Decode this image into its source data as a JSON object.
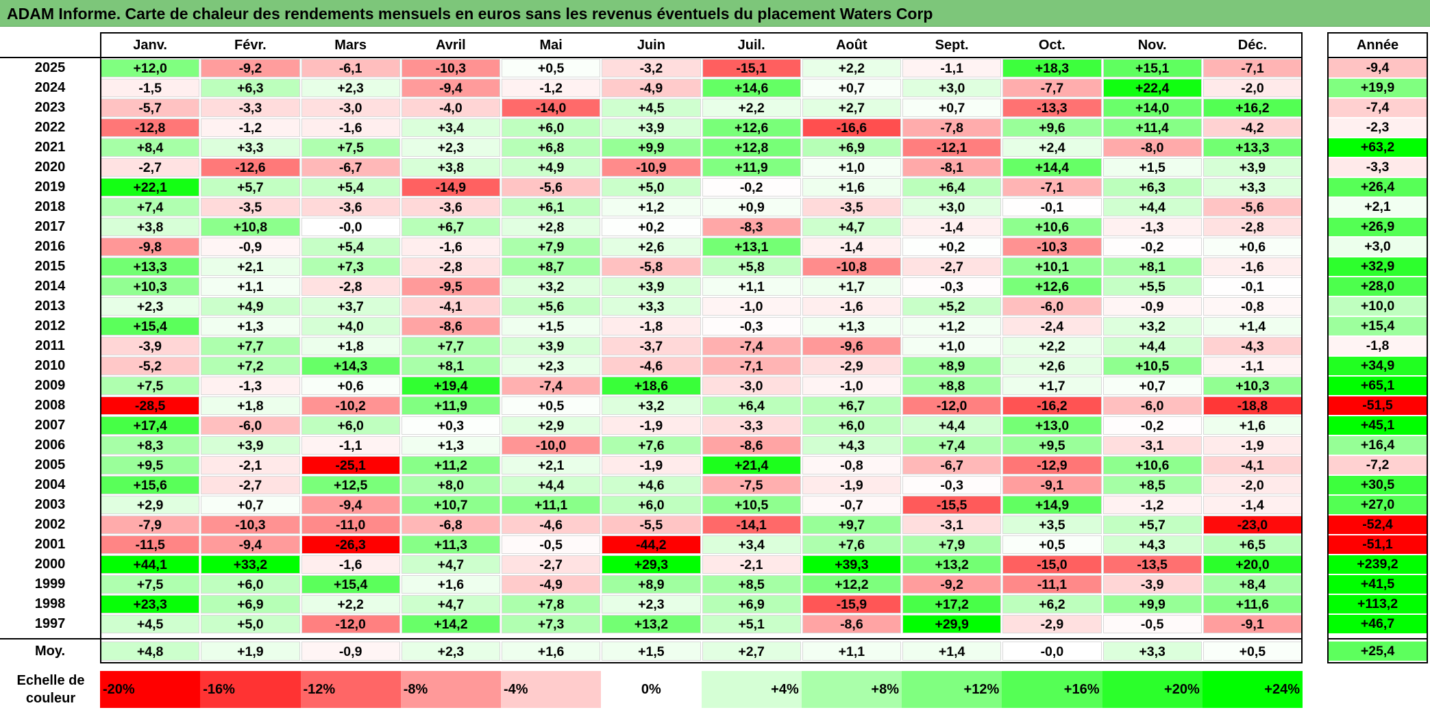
{
  "title": "ADAM Informe. Carte de chaleur des rendements mensuels en euros sans les revenus éventuels du placement Waters Corp",
  "chart_data": {
    "type": "heatmap",
    "months": [
      "Janv.",
      "Févr.",
      "Mars",
      "Avril",
      "Mai",
      "Juin",
      "Juil.",
      "Août",
      "Sept.",
      "Oct.",
      "Nov.",
      "Déc."
    ],
    "annual_header": "Année",
    "rows": [
      {
        "year": "2025",
        "values": [
          "+12,0",
          "-9,2",
          "-6,1",
          "-10,3",
          "+0,5",
          "-3,2",
          "-15,1",
          "+2,2",
          "-1,1",
          "+18,3",
          "+15,1",
          "-7,1"
        ],
        "annual": "-9,4"
      },
      {
        "year": "2024",
        "values": [
          "-1,5",
          "+6,3",
          "+2,3",
          "-9,4",
          "-1,2",
          "-4,9",
          "+14,6",
          "+0,7",
          "+3,0",
          "-7,7",
          "+22,4",
          "-2,0"
        ],
        "annual": "+19,9"
      },
      {
        "year": "2023",
        "values": [
          "-5,7",
          "-3,3",
          "-3,0",
          "-4,0",
          "-14,0",
          "+4,5",
          "+2,2",
          "+2,7",
          "+0,7",
          "-13,3",
          "+14,0",
          "+16,2"
        ],
        "annual": "-7,4"
      },
      {
        "year": "2022",
        "values": [
          "-12,8",
          "-1,2",
          "-1,6",
          "+3,4",
          "+6,0",
          "+3,9",
          "+12,6",
          "-16,6",
          "-7,8",
          "+9,6",
          "+11,4",
          "-4,2"
        ],
        "annual": "-2,3"
      },
      {
        "year": "2021",
        "values": [
          "+8,4",
          "+3,3",
          "+7,5",
          "+2,3",
          "+6,8",
          "+9,9",
          "+12,8",
          "+6,9",
          "-12,1",
          "+2,4",
          "-8,0",
          "+13,3"
        ],
        "annual": "+63,2"
      },
      {
        "year": "2020",
        "values": [
          "-2,7",
          "-12,6",
          "-6,7",
          "+3,8",
          "+4,9",
          "-10,9",
          "+11,9",
          "+1,0",
          "-8,1",
          "+14,4",
          "+1,5",
          "+3,9"
        ],
        "annual": "-3,3"
      },
      {
        "year": "2019",
        "values": [
          "+22,1",
          "+5,7",
          "+5,4",
          "-14,9",
          "-5,6",
          "+5,0",
          "-0,2",
          "+1,6",
          "+6,4",
          "-7,1",
          "+6,3",
          "+3,3"
        ],
        "annual": "+26,4"
      },
      {
        "year": "2018",
        "values": [
          "+7,4",
          "-3,5",
          "-3,6",
          "-3,6",
          "+6,1",
          "+1,2",
          "+0,9",
          "-3,5",
          "+3,0",
          "-0,1",
          "+4,4",
          "-5,6"
        ],
        "annual": "+2,1"
      },
      {
        "year": "2017",
        "values": [
          "+3,8",
          "+10,8",
          "-0,0",
          "+6,7",
          "+2,8",
          "+0,2",
          "-8,3",
          "+4,7",
          "-1,4",
          "+10,6",
          "-1,3",
          "-2,8"
        ],
        "annual": "+26,9"
      },
      {
        "year": "2016",
        "values": [
          "-9,8",
          "-0,9",
          "+5,4",
          "-1,6",
          "+7,9",
          "+2,6",
          "+13,1",
          "-1,4",
          "+0,2",
          "-10,3",
          "-0,2",
          "+0,6"
        ],
        "annual": "+3,0"
      },
      {
        "year": "2015",
        "values": [
          "+13,3",
          "+2,1",
          "+7,3",
          "-2,8",
          "+8,7",
          "-5,8",
          "+5,8",
          "-10,8",
          "-2,7",
          "+10,1",
          "+8,1",
          "-1,6"
        ],
        "annual": "+32,9"
      },
      {
        "year": "2014",
        "values": [
          "+10,3",
          "+1,1",
          "-2,8",
          "-9,5",
          "+3,2",
          "+3,9",
          "+1,1",
          "+1,7",
          "-0,3",
          "+12,6",
          "+5,5",
          "-0,1"
        ],
        "annual": "+28,0"
      },
      {
        "year": "2013",
        "values": [
          "+2,3",
          "+4,9",
          "+3,7",
          "-4,1",
          "+5,6",
          "+3,3",
          "-1,0",
          "-1,6",
          "+5,2",
          "-6,0",
          "-0,9",
          "-0,8"
        ],
        "annual": "+10,0"
      },
      {
        "year": "2012",
        "values": [
          "+15,4",
          "+1,3",
          "+4,0",
          "-8,6",
          "+1,5",
          "-1,8",
          "-0,3",
          "+1,3",
          "+1,2",
          "-2,4",
          "+3,2",
          "+1,4"
        ],
        "annual": "+15,4"
      },
      {
        "year": "2011",
        "values": [
          "-3,9",
          "+7,7",
          "+1,8",
          "+7,7",
          "+3,9",
          "-3,7",
          "-7,4",
          "-9,6",
          "+1,0",
          "+2,2",
          "+4,4",
          "-4,3"
        ],
        "annual": "-1,8"
      },
      {
        "year": "2010",
        "values": [
          "-5,2",
          "+7,2",
          "+14,3",
          "+8,1",
          "+2,3",
          "-4,6",
          "-7,1",
          "-2,9",
          "+8,9",
          "+2,6",
          "+10,5",
          "-1,1"
        ],
        "annual": "+34,9"
      },
      {
        "year": "2009",
        "values": [
          "+7,5",
          "-1,3",
          "+0,6",
          "+19,4",
          "-7,4",
          "+18,6",
          "-3,0",
          "-1,0",
          "+8,8",
          "+1,7",
          "+0,7",
          "+10,3"
        ],
        "annual": "+65,1"
      },
      {
        "year": "2008",
        "values": [
          "-28,5",
          "+1,8",
          "-10,2",
          "+11,9",
          "+0,5",
          "+3,2",
          "+6,4",
          "+6,7",
          "-12,0",
          "-16,2",
          "-6,0",
          "-18,8"
        ],
        "annual": "-51,5"
      },
      {
        "year": "2007",
        "values": [
          "+17,4",
          "-6,0",
          "+6,0",
          "+0,3",
          "+2,9",
          "-1,9",
          "-3,3",
          "+6,0",
          "+4,4",
          "+13,0",
          "-0,2",
          "+1,6"
        ],
        "annual": "+45,1"
      },
      {
        "year": "2006",
        "values": [
          "+8,3",
          "+3,9",
          "-1,1",
          "+1,3",
          "-10,0",
          "+7,6",
          "-8,6",
          "+4,3",
          "+7,4",
          "+9,5",
          "-3,1",
          "-1,9"
        ],
        "annual": "+16,4"
      },
      {
        "year": "2005",
        "values": [
          "+9,5",
          "-2,1",
          "-25,1",
          "+11,2",
          "+2,1",
          "-1,9",
          "+21,4",
          "-0,8",
          "-6,7",
          "-12,9",
          "+10,6",
          "-4,1"
        ],
        "annual": "-7,2"
      },
      {
        "year": "2004",
        "values": [
          "+15,6",
          "-2,7",
          "+12,5",
          "+8,0",
          "+4,4",
          "+4,6",
          "-7,5",
          "-1,9",
          "-0,3",
          "-9,1",
          "+8,5",
          "-2,0"
        ],
        "annual": "+30,5"
      },
      {
        "year": "2003",
        "values": [
          "+2,9",
          "+0,7",
          "-9,4",
          "+10,7",
          "+11,1",
          "+6,0",
          "+10,5",
          "-0,7",
          "-15,5",
          "+14,9",
          "-1,2",
          "-1,4"
        ],
        "annual": "+27,0"
      },
      {
        "year": "2002",
        "values": [
          "-7,9",
          "-10,3",
          "-11,0",
          "-6,8",
          "-4,6",
          "-5,5",
          "-14,1",
          "+9,7",
          "-3,1",
          "+3,5",
          "+5,7",
          "-23,0"
        ],
        "annual": "-52,4"
      },
      {
        "year": "2001",
        "values": [
          "-11,5",
          "-9,4",
          "-26,3",
          "+11,3",
          "-0,5",
          "-44,2",
          "+3,4",
          "+7,6",
          "+7,9",
          "+0,5",
          "+4,3",
          "+6,5"
        ],
        "annual": "-51,1"
      },
      {
        "year": "2000",
        "values": [
          "+44,1",
          "+33,2",
          "-1,6",
          "+4,7",
          "-2,7",
          "+29,3",
          "-2,1",
          "+39,3",
          "+13,2",
          "-15,0",
          "-13,5",
          "+20,0"
        ],
        "annual": "+239,2"
      },
      {
        "year": "1999",
        "values": [
          "+7,5",
          "+6,0",
          "+15,4",
          "+1,6",
          "-4,9",
          "+8,9",
          "+8,5",
          "+12,2",
          "-9,2",
          "-11,1",
          "-3,9",
          "+8,4"
        ],
        "annual": "+41,5"
      },
      {
        "year": "1998",
        "values": [
          "+23,3",
          "+6,9",
          "+2,2",
          "+4,7",
          "+7,8",
          "+2,3",
          "+6,9",
          "-15,9",
          "+17,2",
          "+6,2",
          "+9,9",
          "+11,6"
        ],
        "annual": "+113,2"
      },
      {
        "year": "1997",
        "values": [
          "+4,5",
          "+5,0",
          "-12,0",
          "+14,2",
          "+7,3",
          "+13,2",
          "+5,1",
          "-8,6",
          "+29,9",
          "-2,9",
          "-0,5",
          "-9,1"
        ],
        "annual": "+46,7"
      }
    ],
    "average": {
      "label": "Moy.",
      "values": [
        "+4,8",
        "+1,9",
        "-0,9",
        "+2,3",
        "+1,6",
        "+1,5",
        "+2,7",
        "+1,1",
        "+1,4",
        "-0,0",
        "+3,3",
        "+0,5"
      ],
      "annual": "+25,4"
    },
    "color_scale": {
      "label": "Echelle de couleur",
      "steps": [
        "-20%",
        "-16%",
        "-12%",
        "-8%",
        "-4%",
        "0%",
        "+4%",
        "+8%",
        "+12%",
        "+16%",
        "+20%",
        "+24%"
      ],
      "negative_color": "#ff0000",
      "positive_color": "#00ff00",
      "neutral_color": "#ffffff"
    }
  }
}
